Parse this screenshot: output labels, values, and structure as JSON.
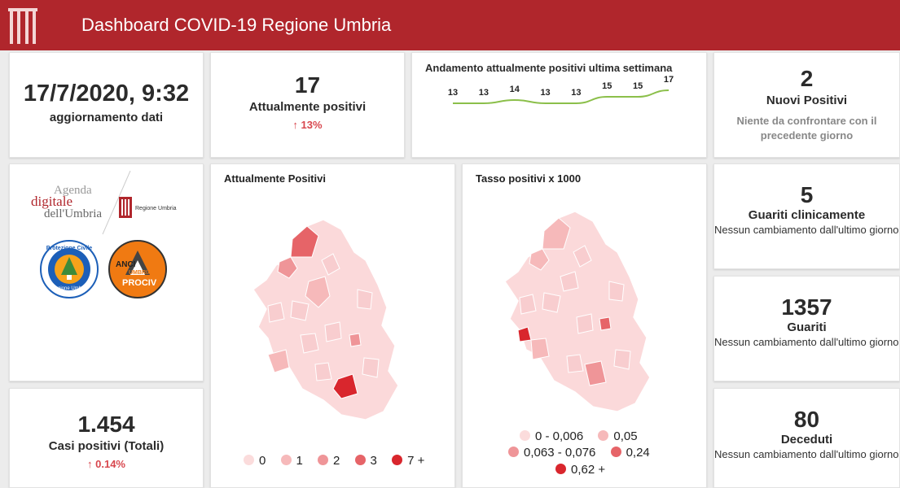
{
  "header": {
    "title": "Dashboard COVID-19 Regione Umbria",
    "logo_icon": "umbria-coat-icon"
  },
  "update": {
    "datetime": "17/7/2020, 9:32",
    "label": "aggiornamento dati"
  },
  "active": {
    "value": "17",
    "label": "Attualmente positivi",
    "delta": "13%",
    "delta_icon": "arrow-up-icon"
  },
  "trend": {
    "title": "Andamento attualmente positivi ultima settimana",
    "values": [
      13,
      13,
      14,
      13,
      13,
      15,
      15,
      17
    ],
    "labels": [
      "13",
      "13",
      "14",
      "13",
      "13",
      "15",
      "15",
      "17"
    ],
    "color": "#8bbf4a"
  },
  "new_positive": {
    "value": "2",
    "label": "Nuovi Positivi",
    "note": "Niente da confrontare con il precedente giorno"
  },
  "logos": {
    "agenda_line1": "Agenda",
    "agenda_line2": "digitale",
    "agenda_line3": "dell'Umbria",
    "regione": "Regione Umbria",
    "protezione": "Protezione Civile",
    "protezione_sub": "Regione Umbria",
    "anci_line1": "ANCI",
    "anci_line2": "UMBRIA",
    "anci_line3": "PROCIV"
  },
  "map_positive": {
    "title": "Attualmente Positivi",
    "legend": [
      "0",
      "1",
      "2",
      "3",
      "7 +"
    ]
  },
  "map_rate": {
    "title": "Tasso positivi x 1000",
    "legend": [
      "0 - 0,006",
      "0,05",
      "0,063 - 0,076",
      "0,24",
      "0,62 +"
    ]
  },
  "legend_colors": [
    "#fbdcdc",
    "#f6b9ba",
    "#ef9598",
    "#e66468",
    "#d9262d"
  ],
  "total": {
    "value": "1.454",
    "label": "Casi positivi (Totali)",
    "delta": "0.14%"
  },
  "recovered_clinical": {
    "value": "5",
    "label": "Guariti clinicamente",
    "note": "Nessun cambiamento dall'ultimo giorno"
  },
  "recovered": {
    "value": "1357",
    "label": "Guariti",
    "note": "Nessun cambiamento dall'ultimo giorno"
  },
  "deceased": {
    "value": "80",
    "label": "Deceduti",
    "note": "Nessun cambiamento dall'ultimo giorno"
  }
}
